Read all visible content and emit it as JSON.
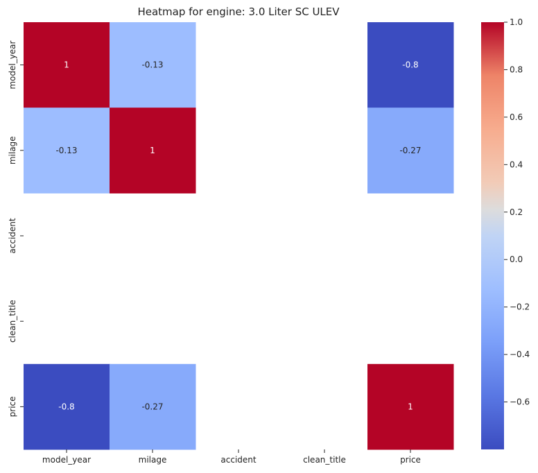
{
  "chart_data": {
    "type": "heatmap",
    "title": "Heatmap for engine: 3.0 Liter SC ULEV",
    "x_labels": [
      "model_year",
      "milage",
      "accident",
      "clean_title",
      "price"
    ],
    "y_labels": [
      "model_year",
      "milage",
      "accident",
      "clean_title",
      "price"
    ],
    "values": [
      [
        1,
        -0.13,
        null,
        null,
        -0.8
      ],
      [
        -0.13,
        1,
        null,
        null,
        -0.27
      ],
      [
        null,
        null,
        null,
        null,
        null
      ],
      [
        null,
        null,
        null,
        null,
        null
      ],
      [
        -0.8,
        -0.27,
        null,
        null,
        1
      ]
    ],
    "annotations": [
      [
        "1",
        "-0.13",
        "",
        "",
        "-0.8"
      ],
      [
        "-0.13",
        "1",
        "",
        "",
        "-0.27"
      ],
      [
        "",
        "",
        "",
        "",
        ""
      ],
      [
        "",
        "",
        "",
        "",
        ""
      ],
      [
        "-0.8",
        "-0.27",
        "",
        "",
        "1"
      ]
    ],
    "colormap": "coolwarm",
    "vmin": -0.8,
    "vmax": 1.0,
    "colorbar_ticks": [
      "1.0",
      "0.8",
      "0.6",
      "0.4",
      "0.2",
      "0.0",
      "−0.2",
      "−0.4",
      "−0.6"
    ],
    "colorbar_tick_values": [
      1.0,
      0.8,
      0.6,
      0.4,
      0.2,
      0.0,
      -0.2,
      -0.4,
      -0.6
    ]
  }
}
